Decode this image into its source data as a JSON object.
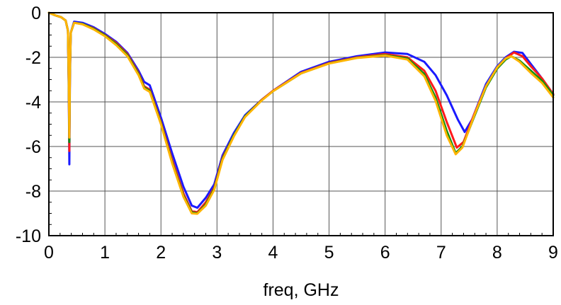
{
  "chart_data": {
    "type": "line",
    "xlabel": "freq, GHz",
    "ylabel": "",
    "xlim": [
      0,
      9
    ],
    "ylim": [
      -10,
      0
    ],
    "x_ticks": [
      "0",
      "1",
      "2",
      "3",
      "4",
      "5",
      "6",
      "7",
      "8",
      "9"
    ],
    "y_ticks": [
      "0",
      "-2",
      "-4",
      "-6",
      "-8",
      "-10"
    ],
    "grid": true,
    "series": [
      {
        "color": "#1a1aff",
        "points": [
          [
            0,
            0
          ],
          [
            0.12,
            -0.12
          ],
          [
            0.22,
            -0.2
          ],
          [
            0.3,
            -0.35
          ],
          [
            0.34,
            -0.8
          ],
          [
            0.355,
            -3.5
          ],
          [
            0.365,
            -6.8
          ],
          [
            0.375,
            -3.0
          ],
          [
            0.39,
            -0.9
          ],
          [
            0.45,
            -0.4
          ],
          [
            0.6,
            -0.45
          ],
          [
            0.8,
            -0.65
          ],
          [
            1.0,
            -0.95
          ],
          [
            1.2,
            -1.3
          ],
          [
            1.4,
            -1.8
          ],
          [
            1.6,
            -2.6
          ],
          [
            1.7,
            -3.1
          ],
          [
            1.8,
            -3.25
          ],
          [
            2.0,
            -4.7
          ],
          [
            2.2,
            -6.3
          ],
          [
            2.4,
            -7.8
          ],
          [
            2.55,
            -8.65
          ],
          [
            2.65,
            -8.75
          ],
          [
            2.8,
            -8.3
          ],
          [
            2.95,
            -7.7
          ],
          [
            3.1,
            -6.4
          ],
          [
            3.3,
            -5.4
          ],
          [
            3.5,
            -4.6
          ],
          [
            3.8,
            -3.9
          ],
          [
            4.0,
            -3.5
          ],
          [
            4.5,
            -2.65
          ],
          [
            5.0,
            -2.2
          ],
          [
            5.5,
            -1.95
          ],
          [
            6.0,
            -1.78
          ],
          [
            6.4,
            -1.85
          ],
          [
            6.7,
            -2.2
          ],
          [
            6.9,
            -2.8
          ],
          [
            7.1,
            -3.7
          ],
          [
            7.3,
            -4.8
          ],
          [
            7.42,
            -5.35
          ],
          [
            7.55,
            -4.8
          ],
          [
            7.8,
            -3.2
          ],
          [
            8.0,
            -2.4
          ],
          [
            8.15,
            -2.0
          ],
          [
            8.3,
            -1.75
          ],
          [
            8.45,
            -1.8
          ],
          [
            8.6,
            -2.3
          ],
          [
            8.8,
            -2.95
          ],
          [
            9.0,
            -3.65
          ]
        ]
      },
      {
        "color": "#ff1a1a",
        "points": [
          [
            0,
            0
          ],
          [
            0.12,
            -0.12
          ],
          [
            0.22,
            -0.2
          ],
          [
            0.3,
            -0.35
          ],
          [
            0.34,
            -0.8
          ],
          [
            0.355,
            -3.3
          ],
          [
            0.365,
            -6.2
          ],
          [
            0.375,
            -2.8
          ],
          [
            0.39,
            -0.9
          ],
          [
            0.45,
            -0.45
          ],
          [
            0.6,
            -0.5
          ],
          [
            0.8,
            -0.7
          ],
          [
            1.0,
            -1.0
          ],
          [
            1.2,
            -1.35
          ],
          [
            1.4,
            -1.85
          ],
          [
            1.6,
            -2.7
          ],
          [
            1.7,
            -3.3
          ],
          [
            1.8,
            -3.45
          ],
          [
            2.0,
            -4.9
          ],
          [
            2.2,
            -6.6
          ],
          [
            2.4,
            -8.1
          ],
          [
            2.55,
            -8.9
          ],
          [
            2.65,
            -8.95
          ],
          [
            2.8,
            -8.5
          ],
          [
            2.95,
            -7.85
          ],
          [
            3.1,
            -6.5
          ],
          [
            3.3,
            -5.5
          ],
          [
            3.5,
            -4.65
          ],
          [
            3.8,
            -3.9
          ],
          [
            4.0,
            -3.5
          ],
          [
            4.5,
            -2.7
          ],
          [
            5.0,
            -2.25
          ],
          [
            5.5,
            -2.0
          ],
          [
            6.0,
            -1.85
          ],
          [
            6.4,
            -2.0
          ],
          [
            6.7,
            -2.6
          ],
          [
            6.9,
            -3.5
          ],
          [
            7.1,
            -4.9
          ],
          [
            7.28,
            -6.05
          ],
          [
            7.4,
            -5.8
          ],
          [
            7.6,
            -4.5
          ],
          [
            7.8,
            -3.3
          ],
          [
            8.0,
            -2.5
          ],
          [
            8.15,
            -2.05
          ],
          [
            8.3,
            -1.78
          ],
          [
            8.45,
            -1.95
          ],
          [
            8.6,
            -2.4
          ],
          [
            8.8,
            -2.95
          ],
          [
            9.0,
            -3.65
          ]
        ]
      },
      {
        "color": "#109010",
        "points": [
          [
            0,
            0
          ],
          [
            0.12,
            -0.12
          ],
          [
            0.22,
            -0.2
          ],
          [
            0.3,
            -0.35
          ],
          [
            0.34,
            -0.8
          ],
          [
            0.355,
            -3.2
          ],
          [
            0.365,
            -5.8
          ],
          [
            0.375,
            -2.7
          ],
          [
            0.39,
            -0.9
          ],
          [
            0.45,
            -0.45
          ],
          [
            0.6,
            -0.5
          ],
          [
            0.8,
            -0.72
          ],
          [
            1.0,
            -1.02
          ],
          [
            1.2,
            -1.4
          ],
          [
            1.4,
            -1.9
          ],
          [
            1.6,
            -2.75
          ],
          [
            1.7,
            -3.35
          ],
          [
            1.8,
            -3.5
          ],
          [
            2.0,
            -4.95
          ],
          [
            2.2,
            -6.7
          ],
          [
            2.4,
            -8.2
          ],
          [
            2.55,
            -8.95
          ],
          [
            2.65,
            -9.0
          ],
          [
            2.8,
            -8.6
          ],
          [
            2.95,
            -7.9
          ],
          [
            3.1,
            -6.55
          ],
          [
            3.3,
            -5.5
          ],
          [
            3.5,
            -4.65
          ],
          [
            3.8,
            -3.92
          ],
          [
            4.0,
            -3.52
          ],
          [
            4.5,
            -2.72
          ],
          [
            5.0,
            -2.27
          ],
          [
            5.5,
            -2.02
          ],
          [
            6.0,
            -1.9
          ],
          [
            6.4,
            -2.05
          ],
          [
            6.7,
            -2.75
          ],
          [
            6.9,
            -3.8
          ],
          [
            7.1,
            -5.3
          ],
          [
            7.26,
            -6.3
          ],
          [
            7.38,
            -6.0
          ],
          [
            7.6,
            -4.6
          ],
          [
            7.8,
            -3.35
          ],
          [
            8.0,
            -2.5
          ],
          [
            8.15,
            -2.1
          ],
          [
            8.25,
            -1.95
          ],
          [
            8.4,
            -2.15
          ],
          [
            8.6,
            -2.6
          ],
          [
            8.8,
            -3.05
          ],
          [
            9.0,
            -3.7
          ]
        ]
      },
      {
        "color": "#ffb400",
        "points": [
          [
            0,
            0
          ],
          [
            0.12,
            -0.12
          ],
          [
            0.22,
            -0.2
          ],
          [
            0.3,
            -0.35
          ],
          [
            0.34,
            -0.8
          ],
          [
            0.355,
            -3.0
          ],
          [
            0.365,
            -5.6
          ],
          [
            0.375,
            -2.6
          ],
          [
            0.39,
            -0.9
          ],
          [
            0.45,
            -0.45
          ],
          [
            0.6,
            -0.52
          ],
          [
            0.8,
            -0.75
          ],
          [
            1.0,
            -1.05
          ],
          [
            1.2,
            -1.45
          ],
          [
            1.4,
            -1.95
          ],
          [
            1.6,
            -2.8
          ],
          [
            1.7,
            -3.4
          ],
          [
            1.8,
            -3.55
          ],
          [
            2.0,
            -5.0
          ],
          [
            2.2,
            -6.75
          ],
          [
            2.4,
            -8.25
          ],
          [
            2.55,
            -9.0
          ],
          [
            2.65,
            -9.02
          ],
          [
            2.8,
            -8.65
          ],
          [
            2.95,
            -7.95
          ],
          [
            3.1,
            -6.6
          ],
          [
            3.3,
            -5.55
          ],
          [
            3.5,
            -4.68
          ],
          [
            3.8,
            -3.93
          ],
          [
            4.0,
            -3.52
          ],
          [
            4.5,
            -2.72
          ],
          [
            5.0,
            -2.28
          ],
          [
            5.5,
            -2.03
          ],
          [
            6.0,
            -1.92
          ],
          [
            6.4,
            -2.1
          ],
          [
            6.7,
            -2.85
          ],
          [
            6.9,
            -3.95
          ],
          [
            7.1,
            -5.5
          ],
          [
            7.26,
            -6.35
          ],
          [
            7.38,
            -6.05
          ],
          [
            7.6,
            -4.55
          ],
          [
            7.8,
            -3.3
          ],
          [
            8.0,
            -2.45
          ],
          [
            8.15,
            -2.05
          ],
          [
            8.25,
            -1.95
          ],
          [
            8.4,
            -2.2
          ],
          [
            8.6,
            -2.7
          ],
          [
            8.8,
            -3.15
          ],
          [
            9.0,
            -3.8
          ]
        ]
      }
    ]
  }
}
